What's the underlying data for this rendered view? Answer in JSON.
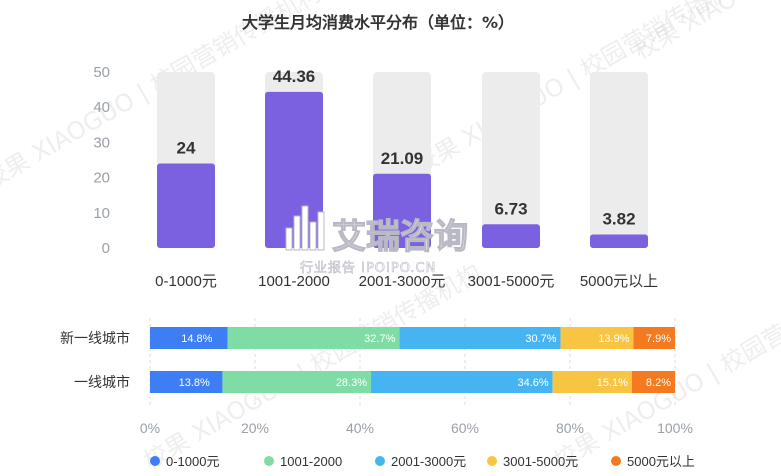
{
  "watermark": {
    "brand_text": "校果 XIAOGUO | 校园营销传播机构",
    "logo_main": "艾瑞咨询",
    "logo_sub": "行业报告 IPOIPO.CN"
  },
  "chart_data": [
    {
      "type": "bar",
      "title": "大学生月均消费水平分布（单位：%）",
      "categories": [
        "0-1000元",
        "1001-2000",
        "2001-3000元",
        "3001-5000元",
        "5000元以上"
      ],
      "values": [
        24,
        44.36,
        21.09,
        6.73,
        3.82
      ],
      "value_labels": [
        "24",
        "44.36",
        "21.09",
        "6.73",
        "3.82"
      ],
      "ylim": [
        0,
        50
      ],
      "yticks": [
        "0",
        "10",
        "20",
        "30",
        "40",
        "50"
      ],
      "bar_color": "#7b61e0",
      "background_bar_color": "#ececec",
      "grid": false
    },
    {
      "type": "bar",
      "orientation": "horizontal-stacked-100",
      "categories": [
        "新一线城市",
        "一线城市"
      ],
      "series": [
        {
          "name": "0-1000元",
          "color": "#3d7ef5",
          "values": [
            14.8,
            13.8
          ],
          "labels": [
            "14.8%",
            "13.8%"
          ]
        },
        {
          "name": "1001-2000",
          "color": "#7fdca4",
          "values": [
            32.7,
            28.3
          ],
          "labels": [
            "32.7%",
            "28.3%"
          ]
        },
        {
          "name": "2001-3000元",
          "color": "#47b4f2",
          "values": [
            30.7,
            34.6
          ],
          "labels": [
            "30.7%",
            "34.6%"
          ]
        },
        {
          "name": "3001-5000元",
          "color": "#f8c543",
          "values": [
            13.9,
            15.1
          ],
          "labels": [
            "13.9%",
            "15.1%"
          ]
        },
        {
          "name": "5000元以上",
          "color": "#f57a1f",
          "values": [
            7.9,
            8.2
          ],
          "labels": [
            "7.9%",
            "8.2%"
          ]
        }
      ],
      "xticks": [
        "0%",
        "20%",
        "40%",
        "60%",
        "80%",
        "100%"
      ],
      "xlim": [
        0,
        100
      ],
      "grid": true,
      "legend_position": "bottom"
    }
  ]
}
